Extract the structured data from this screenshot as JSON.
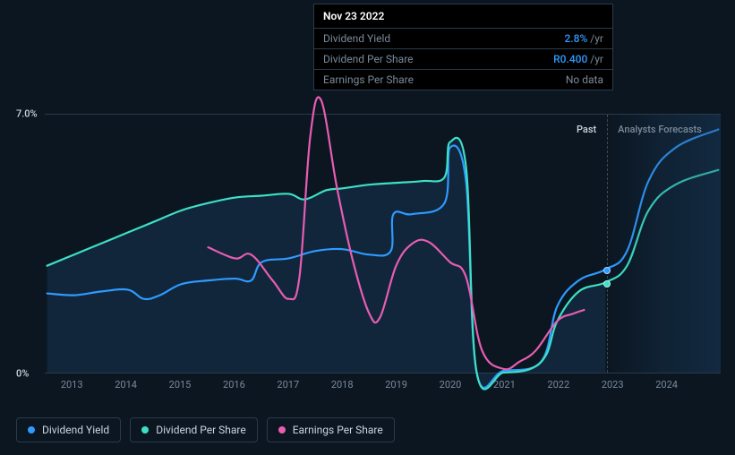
{
  "tooltip": {
    "date": "Nov 23 2022",
    "rows": [
      {
        "label": "Dividend Yield",
        "value": "2.8%",
        "unit": "/yr",
        "value_color": "#2e9bff"
      },
      {
        "label": "Dividend Per Share",
        "value": "R0.400",
        "unit": "/yr",
        "value_color": "#2e9bff"
      },
      {
        "label": "Earnings Per Share",
        "nodata": "No data"
      }
    ]
  },
  "chart": {
    "type": "line",
    "background_color": "#0b1621",
    "grid_color": "#2a3a4a",
    "text_color": "#7a8a9a",
    "ylim": [
      0,
      7
    ],
    "y_ticks": [
      {
        "v": 7,
        "label": "7.0%"
      },
      {
        "v": 0,
        "label": "0%"
      }
    ],
    "xlim": [
      2012.5,
      2025.0
    ],
    "x_ticks": [
      2013,
      2014,
      2015,
      2016,
      2017,
      2018,
      2019,
      2020,
      2021,
      2022,
      2023,
      2024
    ],
    "forecast_start": 2022.9,
    "regions": {
      "past_label": "Past",
      "forecast_label": "Analysts Forecasts"
    },
    "series": [
      {
        "name": "Dividend Yield",
        "color": "#2e9bff",
        "line_width": 2.2,
        "legend_dot": "#2e9bff",
        "points": [
          [
            2012.5,
            2.15
          ],
          [
            2013.0,
            2.1
          ],
          [
            2013.5,
            2.2
          ],
          [
            2014.0,
            2.25
          ],
          [
            2014.3,
            2.0
          ],
          [
            2014.6,
            2.1
          ],
          [
            2015.0,
            2.4
          ],
          [
            2015.5,
            2.5
          ],
          [
            2016.0,
            2.55
          ],
          [
            2016.3,
            2.5
          ],
          [
            2016.5,
            3.0
          ],
          [
            2017.0,
            3.1
          ],
          [
            2017.5,
            3.3
          ],
          [
            2018.0,
            3.35
          ],
          [
            2018.5,
            3.2
          ],
          [
            2018.9,
            3.3
          ],
          [
            2018.95,
            4.3
          ],
          [
            2019.3,
            4.3
          ],
          [
            2019.9,
            4.6
          ],
          [
            2020.0,
            6.1
          ],
          [
            2020.3,
            5.2
          ],
          [
            2020.5,
            0.0
          ],
          [
            2021.0,
            0.05
          ],
          [
            2021.7,
            0.3
          ],
          [
            2022.0,
            1.8
          ],
          [
            2022.4,
            2.5
          ],
          [
            2022.9,
            2.8
          ],
          [
            2023.3,
            3.3
          ],
          [
            2023.7,
            5.2
          ],
          [
            2024.2,
            6.1
          ],
          [
            2025.0,
            6.6
          ]
        ],
        "marker_at": [
          2022.9,
          2.8
        ]
      },
      {
        "name": "Dividend Per Share",
        "color": "#3de0c5",
        "line_width": 2.2,
        "legend_dot": "#3de0c5",
        "points": [
          [
            2012.5,
            2.9
          ],
          [
            2013.0,
            3.2
          ],
          [
            2013.5,
            3.5
          ],
          [
            2014.0,
            3.8
          ],
          [
            2014.5,
            4.1
          ],
          [
            2015.0,
            4.4
          ],
          [
            2015.5,
            4.6
          ],
          [
            2016.0,
            4.75
          ],
          [
            2016.5,
            4.8
          ],
          [
            2017.0,
            4.85
          ],
          [
            2017.3,
            4.7
          ],
          [
            2017.7,
            4.95
          ],
          [
            2018.0,
            5.0
          ],
          [
            2018.5,
            5.1
          ],
          [
            2019.0,
            5.15
          ],
          [
            2019.5,
            5.2
          ],
          [
            2019.9,
            5.3
          ],
          [
            2020.0,
            6.25
          ],
          [
            2020.3,
            5.6
          ],
          [
            2020.5,
            0.0
          ],
          [
            2021.0,
            0.0
          ],
          [
            2021.5,
            0.1
          ],
          [
            2021.8,
            0.5
          ],
          [
            2022.0,
            1.4
          ],
          [
            2022.4,
            2.2
          ],
          [
            2022.9,
            2.45
          ],
          [
            2023.3,
            2.9
          ],
          [
            2023.7,
            4.4
          ],
          [
            2024.2,
            5.1
          ],
          [
            2025.0,
            5.5
          ]
        ],
        "marker_at": [
          2022.9,
          2.45
        ]
      },
      {
        "name": "Earnings Per Share",
        "color": "#e85db3",
        "line_width": 2.2,
        "legend_dot": "#e85db3",
        "points": [
          [
            2015.5,
            3.4
          ],
          [
            2016.0,
            3.1
          ],
          [
            2016.3,
            3.2
          ],
          [
            2016.7,
            2.5
          ],
          [
            2017.0,
            2.0
          ],
          [
            2017.2,
            2.6
          ],
          [
            2017.4,
            6.4
          ],
          [
            2017.6,
            7.4
          ],
          [
            2017.9,
            5.0
          ],
          [
            2018.2,
            3.0
          ],
          [
            2018.5,
            1.6
          ],
          [
            2018.7,
            1.5
          ],
          [
            2019.0,
            2.9
          ],
          [
            2019.3,
            3.5
          ],
          [
            2019.6,
            3.55
          ],
          [
            2020.0,
            3.0
          ],
          [
            2020.3,
            2.6
          ],
          [
            2020.6,
            0.6
          ],
          [
            2021.0,
            0.1
          ],
          [
            2021.3,
            0.3
          ],
          [
            2021.6,
            0.6
          ],
          [
            2022.0,
            1.4
          ],
          [
            2022.3,
            1.6
          ],
          [
            2022.5,
            1.7
          ]
        ]
      }
    ],
    "area_fill": {
      "series_index": 1,
      "color": "rgba(30,70,110,0.35)",
      "until_x": 2022.9
    }
  },
  "legend": [
    {
      "label": "Dividend Yield",
      "color": "#2e9bff"
    },
    {
      "label": "Dividend Per Share",
      "color": "#3de0c5"
    },
    {
      "label": "Earnings Per Share",
      "color": "#e85db3"
    }
  ]
}
